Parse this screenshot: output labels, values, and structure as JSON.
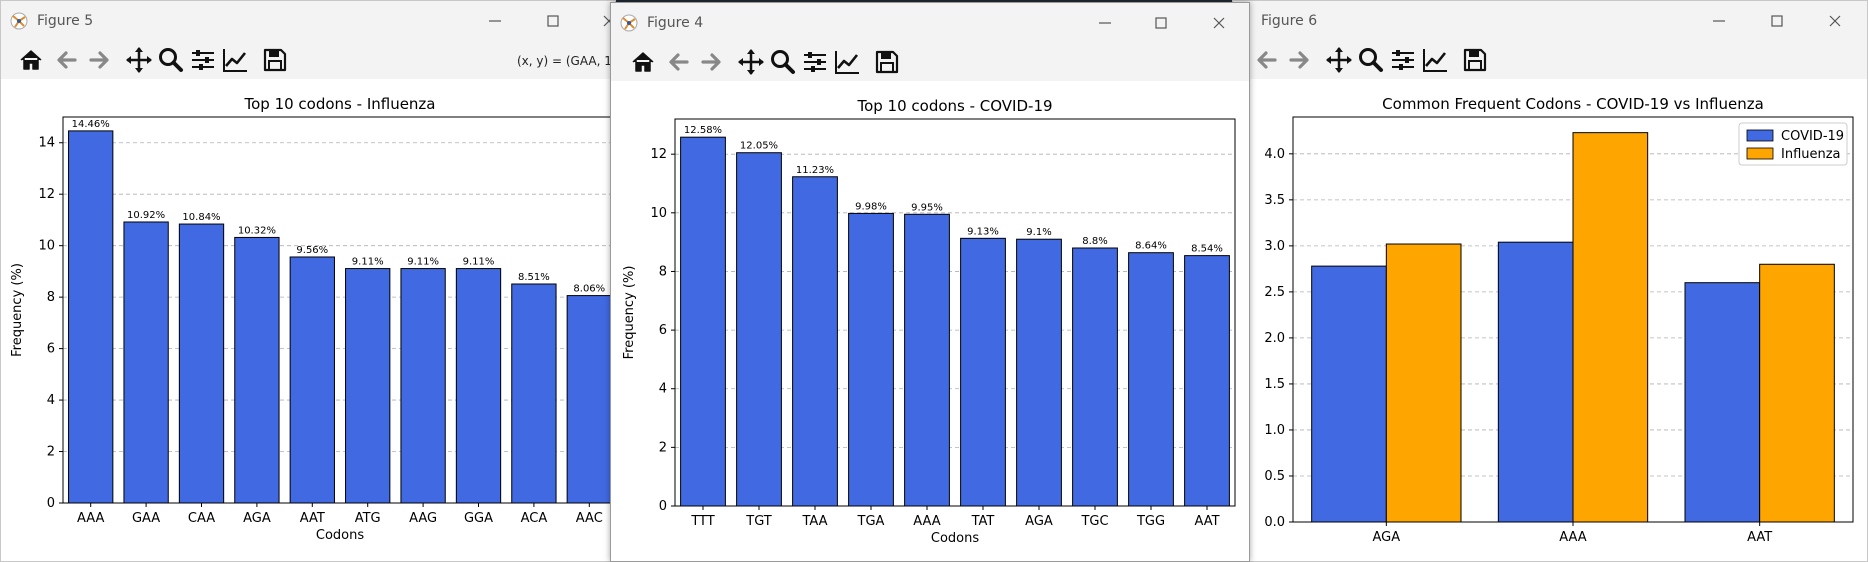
{
  "windows": {
    "fig5": {
      "title": "Figure 5",
      "coord_readout": "(x, y) = (GAA, 1!"
    },
    "fig4": {
      "title": "Figure 4"
    },
    "fig6": {
      "title": "Figure 6"
    }
  },
  "toolbar_icons": [
    "home-icon",
    "back-arrow-icon",
    "forward-arrow-icon",
    "pan-icon",
    "zoom-icon",
    "configure-subplots-icon",
    "edit-axis-icon",
    "save-icon"
  ],
  "colors": {
    "covid": "#4169E1",
    "influenza": "#FFA500",
    "grid": "#b0b0b0"
  },
  "chart_data": [
    {
      "type": "bar",
      "title": "Top 10 codons - Influenza",
      "xlabel": "Codons",
      "ylabel": "Frequency (%)",
      "categories": [
        "AAA",
        "GAA",
        "CAA",
        "AGA",
        "AAT",
        "ATG",
        "AAG",
        "GGA",
        "ACA",
        "AAC"
      ],
      "values": [
        14.46,
        10.92,
        10.84,
        10.32,
        9.56,
        9.11,
        9.11,
        9.11,
        8.51,
        8.06
      ],
      "data_labels": [
        "14.46%",
        "10.92%",
        "10.84%",
        "10.32%",
        "9.56%",
        "9.11%",
        "9.11%",
        "9.11%",
        "8.51%",
        "8.06%"
      ],
      "ylim": [
        0,
        15
      ],
      "yticks": [
        "0",
        "2",
        "4",
        "6",
        "8",
        "10",
        "12",
        "14"
      ],
      "ytick_values": [
        0,
        2,
        4,
        6,
        8,
        10,
        12,
        14
      ],
      "grid": "y-dashed"
    },
    {
      "type": "bar",
      "title": "Top 10 codons - COVID-19",
      "xlabel": "Codons",
      "ylabel": "Frequency (%)",
      "categories": [
        "TTT",
        "TGT",
        "TAA",
        "TGA",
        "AAA",
        "TAT",
        "AGA",
        "TGC",
        "TGG",
        "AAT"
      ],
      "values": [
        12.58,
        12.05,
        11.23,
        9.98,
        9.95,
        9.13,
        9.1,
        8.8,
        8.64,
        8.54
      ],
      "data_labels": [
        "12.58%",
        "12.05%",
        "11.23%",
        "9.98%",
        "9.95%",
        "9.13%",
        "9.1%",
        "8.8%",
        "8.64%",
        "8.54%"
      ],
      "ylim": [
        0,
        13.2
      ],
      "yticks": [
        "0",
        "2",
        "4",
        "6",
        "8",
        "10",
        "12"
      ],
      "ytick_values": [
        0,
        2,
        4,
        6,
        8,
        10,
        12
      ],
      "grid": "y-dashed"
    },
    {
      "type": "bar",
      "title": "Common Frequent Codons - COVID-19 vs Influenza",
      "categories": [
        "AGA",
        "AAA",
        "AAT"
      ],
      "series": [
        {
          "name": "COVID-19",
          "values": [
            2.78,
            3.04,
            2.6
          ]
        },
        {
          "name": "Influenza",
          "values": [
            3.02,
            4.23,
            2.8
          ]
        }
      ],
      "ylim": [
        0,
        4.4
      ],
      "yticks": [
        "0.0",
        "0.5",
        "1.0",
        "1.5",
        "2.0",
        "2.5",
        "3.0",
        "3.5",
        "4.0"
      ],
      "ytick_values": [
        0,
        0.5,
        1.0,
        1.5,
        2.0,
        2.5,
        3.0,
        3.5,
        4.0
      ],
      "legend": "top-right",
      "grid": "y-dashed"
    }
  ]
}
